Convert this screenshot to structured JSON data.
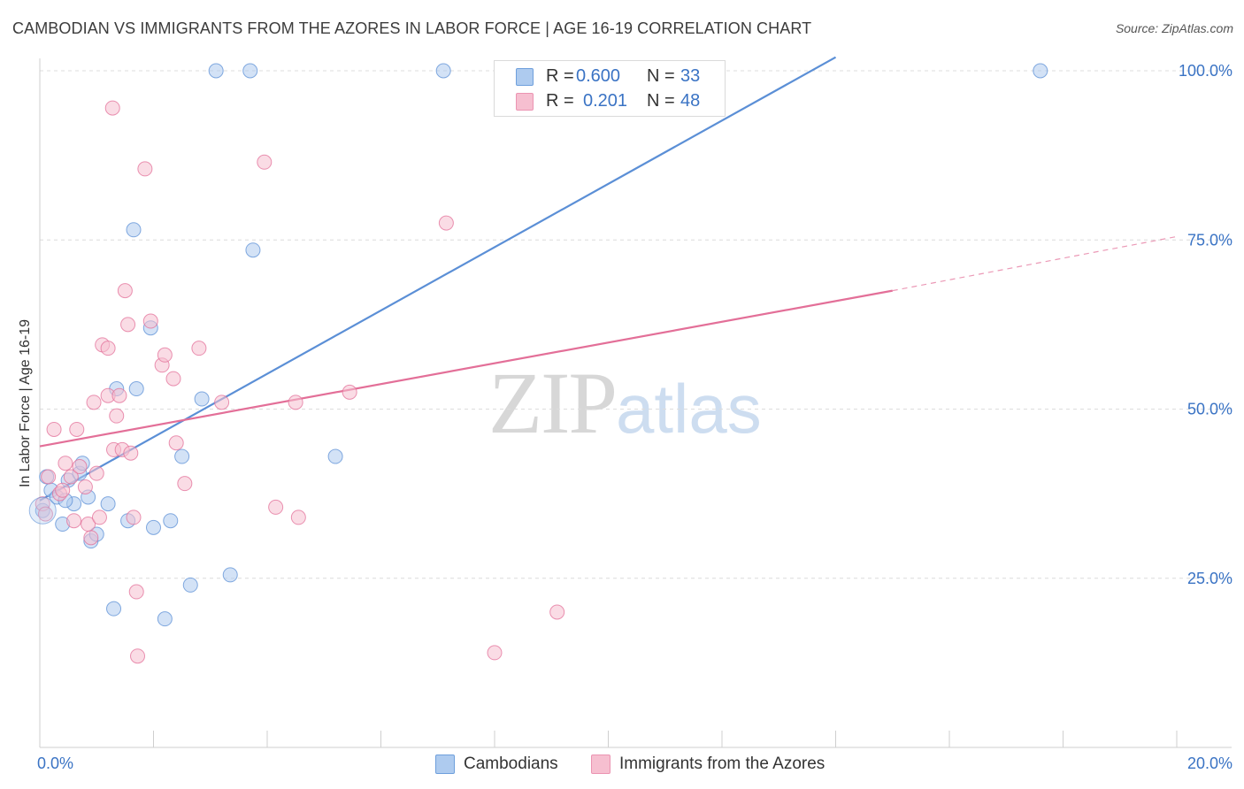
{
  "header": {
    "title": "CAMBODIAN VS IMMIGRANTS FROM THE AZORES IN LABOR FORCE | AGE 16-19 CORRELATION CHART",
    "source": "Source: ZipAtlas.com"
  },
  "watermark": {
    "zip": "ZIP",
    "atlas": "atlas"
  },
  "legend": {
    "rows": [
      {
        "r_label": "R =",
        "r_value": "0.600",
        "n_label": "N =",
        "n_value": "33",
        "color": "#aecbef"
      },
      {
        "r_label": "R =",
        "r_value": "0.201",
        "n_label": "N =",
        "n_value": "48",
        "color": "#f6bfd0"
      }
    ]
  },
  "bottom_legend": {
    "items": [
      {
        "label": "Cambodians",
        "color": "#aecbef"
      },
      {
        "label": "Immigrants from the Azores",
        "color": "#f6bfd0"
      }
    ]
  },
  "chart_data": {
    "type": "scatter",
    "title": "CAMBODIAN VS IMMIGRANTS FROM THE AZORES IN LABOR FORCE | AGE 16-19 CORRELATION CHART",
    "xlabel": "",
    "ylabel": "In Labor Force | Age 16-19",
    "xlim": [
      0,
      20
    ],
    "ylim": [
      0,
      102
    ],
    "x_tick_labels": [
      {
        "value": 0,
        "label": "0.0%"
      },
      {
        "value": 20,
        "label": "20.0%"
      }
    ],
    "y_tick_labels": [
      {
        "value": 25,
        "label": "25.0%"
      },
      {
        "value": 50,
        "label": "50.0%"
      },
      {
        "value": 75,
        "label": "75.0%"
      },
      {
        "value": 100,
        "label": "100.0%"
      }
    ],
    "x_minor_ticks": [
      0,
      2,
      4,
      6,
      8,
      10,
      12,
      14,
      16,
      18,
      20
    ],
    "y_gridlines": [
      25,
      50,
      75,
      100
    ],
    "series": [
      {
        "name": "Cambodians",
        "color": "#5b8fd6",
        "fill": "#aecbef",
        "r": 0.6,
        "n": 33,
        "points": [
          [
            0.05,
            35.0
          ],
          [
            0.12,
            40.0
          ],
          [
            0.2,
            38.0
          ],
          [
            0.3,
            37.0
          ],
          [
            0.4,
            33.0
          ],
          [
            0.5,
            39.5
          ],
          [
            0.6,
            36.0
          ],
          [
            0.7,
            40.5
          ],
          [
            0.75,
            42.0
          ],
          [
            0.85,
            37.0
          ],
          [
            0.9,
            30.5
          ],
          [
            1.0,
            31.5
          ],
          [
            1.2,
            36.0
          ],
          [
            1.3,
            20.5
          ],
          [
            1.35,
            53.0
          ],
          [
            1.55,
            33.5
          ],
          [
            1.65,
            76.5
          ],
          [
            1.7,
            53.0
          ],
          [
            1.95,
            62.0
          ],
          [
            2.0,
            32.5
          ],
          [
            2.2,
            19.0
          ],
          [
            2.3,
            33.5
          ],
          [
            2.5,
            43.0
          ],
          [
            2.65,
            24.0
          ],
          [
            2.85,
            51.5
          ],
          [
            3.1,
            100.0
          ],
          [
            3.35,
            25.5
          ],
          [
            3.7,
            100.0
          ],
          [
            3.75,
            73.5
          ],
          [
            5.2,
            43.0
          ],
          [
            7.1,
            100.0
          ],
          [
            17.6,
            100.0
          ],
          [
            0.45,
            36.5
          ]
        ],
        "trend": {
          "x0": 0,
          "y0": 36.5,
          "x1": 14.0,
          "y1": 102.0,
          "dashed_from": null
        }
      },
      {
        "name": "Immigrants from the Azores",
        "color": "#e36f98",
        "fill": "#f6bfd0",
        "r": 0.201,
        "n": 48,
        "points": [
          [
            0.05,
            36.0
          ],
          [
            0.1,
            34.5
          ],
          [
            0.15,
            40.0
          ],
          [
            0.25,
            47.0
          ],
          [
            0.35,
            37.5
          ],
          [
            0.4,
            38.0
          ],
          [
            0.45,
            42.0
          ],
          [
            0.55,
            40.0
          ],
          [
            0.6,
            33.5
          ],
          [
            0.7,
            41.5
          ],
          [
            0.65,
            47.0
          ],
          [
            0.8,
            38.5
          ],
          [
            0.85,
            33.0
          ],
          [
            0.9,
            31.0
          ],
          [
            0.95,
            51.0
          ],
          [
            1.0,
            40.5
          ],
          [
            1.1,
            59.5
          ],
          [
            1.2,
            52.0
          ],
          [
            1.05,
            34.0
          ],
          [
            1.3,
            44.0
          ],
          [
            1.35,
            49.0
          ],
          [
            1.2,
            59.0
          ],
          [
            1.28,
            94.5
          ],
          [
            1.4,
            52.0
          ],
          [
            1.45,
            44.0
          ],
          [
            1.5,
            67.5
          ],
          [
            1.55,
            62.5
          ],
          [
            1.6,
            43.5
          ],
          [
            1.65,
            34.0
          ],
          [
            1.7,
            23.0
          ],
          [
            1.72,
            13.5
          ],
          [
            1.85,
            85.5
          ],
          [
            1.95,
            63.0
          ],
          [
            2.15,
            56.5
          ],
          [
            2.2,
            58.0
          ],
          [
            2.35,
            54.5
          ],
          [
            2.4,
            45.0
          ],
          [
            2.55,
            39.0
          ],
          [
            2.8,
            59.0
          ],
          [
            3.2,
            51.0
          ],
          [
            3.95,
            86.5
          ],
          [
            4.15,
            35.5
          ],
          [
            4.5,
            51.0
          ],
          [
            4.55,
            34.0
          ],
          [
            5.45,
            52.5
          ],
          [
            7.15,
            77.5
          ],
          [
            8.0,
            14.0
          ],
          [
            9.1,
            20.0
          ]
        ],
        "trend": {
          "x0": 0,
          "y0": 44.5,
          "x1": 15.0,
          "y1": 67.5,
          "dashed_to_x": 20.0,
          "dashed_to_y": 75.5
        }
      }
    ]
  }
}
